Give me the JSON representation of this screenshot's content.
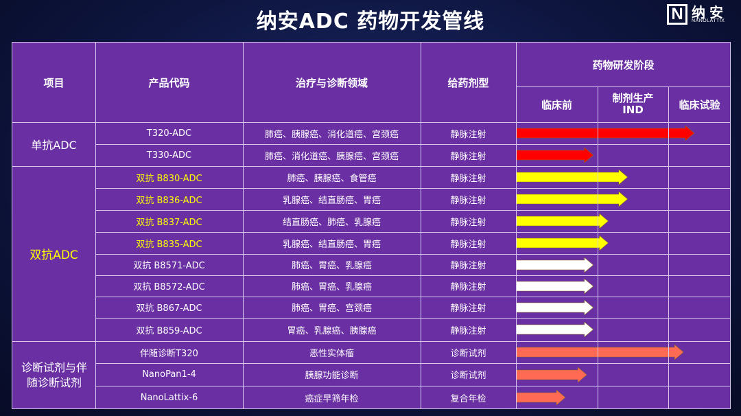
{
  "title": "纳安ADC 药物开发管线",
  "logo": {
    "mark": "N",
    "name": "纳安",
    "sub": "NANOLATTIX"
  },
  "headers": {
    "project": "项目",
    "code": "产品代码",
    "area": "治疗与诊断领域",
    "dosage": "给药剂型",
    "stage": "药物研发阶段",
    "preclinical": "临床前",
    "ind_line1": "制剂生产",
    "ind_line2": "IND",
    "clinical": "临床试验"
  },
  "groups": [
    {
      "label": "单抗ADC",
      "highlight": false
    },
    {
      "label": "双抗ADC",
      "highlight": true
    },
    {
      "label": "诊断试剂与伴随诊断试剂",
      "highlight": false
    }
  ],
  "rows": [
    {
      "code": "T320-ADC",
      "area": "肺癌、胰腺癌、消化道癌、宫颈癌",
      "dosage": "静脉注射",
      "highlight": false,
      "color": "#ff0000",
      "progress": 0.83
    },
    {
      "code": "T330-ADC",
      "area": "肺癌、消化道癌、胰腺癌、宫颈癌",
      "dosage": "静脉注射",
      "highlight": false,
      "color": "#ff0000",
      "progress": 0.36
    },
    {
      "code": "双抗 B830-ADC",
      "area": "肺癌、胰腺癌、食管癌",
      "dosage": "静脉注射",
      "highlight": true,
      "color": "#ffff00",
      "progress": 0.52
    },
    {
      "code": "双抗 B836-ADC",
      "area": "乳腺癌、结直肠癌、胃癌",
      "dosage": "静脉注射",
      "highlight": true,
      "color": "#ffff00",
      "progress": 0.52
    },
    {
      "code": "双抗 B837-ADC",
      "area": "结直肠癌、肺癌、乳腺癌",
      "dosage": "静脉注射",
      "highlight": true,
      "color": "#ffff00",
      "progress": 0.43
    },
    {
      "code": "双抗 B835-ADC",
      "area": "乳腺癌、结直肠癌、胃癌",
      "dosage": "静脉注射",
      "highlight": true,
      "color": "#ffff00",
      "progress": 0.43
    },
    {
      "code": "双抗 B8571-ADC",
      "area": "肺癌、胃癌、乳腺癌",
      "dosage": "静脉注射",
      "highlight": false,
      "color": "#ffffff",
      "progress": 0.36
    },
    {
      "code": "双抗 B8572-ADC",
      "area": "肺癌、胃癌、乳腺癌",
      "dosage": "静脉注射",
      "highlight": false,
      "color": "#ffffff",
      "progress": 0.36
    },
    {
      "code": "双抗 B867-ADC",
      "area": "肺癌、胃癌、宫颈癌",
      "dosage": "静脉注射",
      "highlight": false,
      "color": "#ffffff",
      "progress": 0.36
    },
    {
      "code": "双抗 B859-ADC",
      "area": "胃癌、乳腺癌、胰腺癌",
      "dosage": "静脉注射",
      "highlight": false,
      "color": "#ffffff",
      "progress": 0.36
    },
    {
      "code": "伴随诊断T320",
      "area": "恶性实体瘤",
      "dosage": "诊断试剂",
      "highlight": false,
      "color": "#ff6a55",
      "progress": 0.78
    },
    {
      "code": "NanoPan1-4",
      "area": "胰腺功能诊断",
      "dosage": "诊断试剂",
      "highlight": false,
      "color": "#ff6a55",
      "progress": 0.33
    },
    {
      "code": "NanoLattix-6",
      "area": "癌症早筛年检",
      "dosage": "复合年检",
      "highlight": false,
      "color": "#ff6a55",
      "progress": 0.23
    }
  ]
}
